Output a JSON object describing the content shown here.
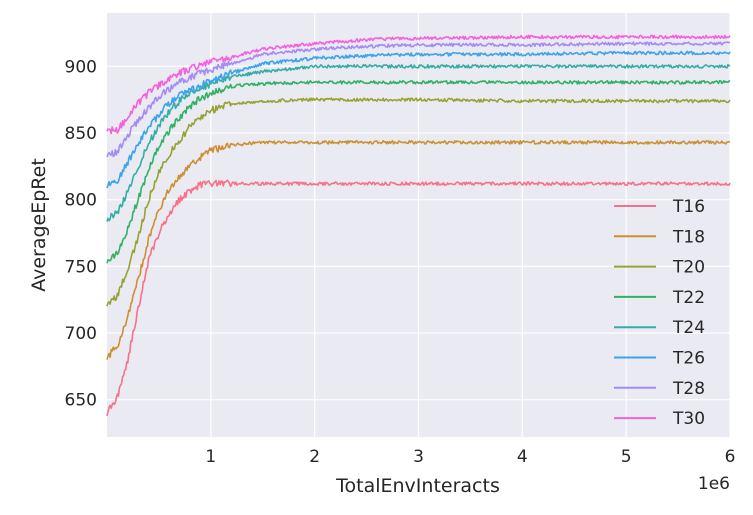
{
  "chart_data": {
    "type": "line",
    "xlabel": "TotalEnvInteracts",
    "ylabel": "AverageEpRet",
    "x_offset_label": "1e6",
    "xlim": [
      0,
      6000000
    ],
    "ylim": [
      622,
      940
    ],
    "x_ticks": [
      1000000,
      2000000,
      3000000,
      4000000,
      5000000,
      6000000
    ],
    "x_tick_labels": [
      "1",
      "2",
      "3",
      "4",
      "5",
      "6"
    ],
    "y_ticks": [
      650,
      700,
      750,
      800,
      850,
      900
    ],
    "y_tick_labels": [
      "650",
      "700",
      "750",
      "800",
      "850",
      "900"
    ],
    "grid": true,
    "background": "#EAEAF2",
    "legend_position": "lower-right",
    "series": [
      {
        "name": "T16",
        "color": "#F77189",
        "points": [
          [
            0,
            640
          ],
          [
            100000,
            652
          ],
          [
            200000,
            680
          ],
          [
            300000,
            718
          ],
          [
            400000,
            755
          ],
          [
            500000,
            775
          ],
          [
            600000,
            790
          ],
          [
            700000,
            800
          ],
          [
            800000,
            807
          ],
          [
            900000,
            811
          ],
          [
            1000000,
            812
          ],
          [
            2000000,
            812
          ],
          [
            3000000,
            812
          ],
          [
            4000000,
            812
          ],
          [
            5000000,
            812
          ],
          [
            6000000,
            812
          ]
        ]
      },
      {
        "name": "T18",
        "color": "#CE8F31",
        "points": [
          [
            0,
            682
          ],
          [
            100000,
            690
          ],
          [
            200000,
            712
          ],
          [
            300000,
            740
          ],
          [
            400000,
            770
          ],
          [
            500000,
            792
          ],
          [
            600000,
            808
          ],
          [
            700000,
            818
          ],
          [
            800000,
            826
          ],
          [
            900000,
            832
          ],
          [
            1000000,
            837
          ],
          [
            1200000,
            841
          ],
          [
            1500000,
            843
          ],
          [
            2000000,
            843
          ],
          [
            3000000,
            843
          ],
          [
            4000000,
            843
          ],
          [
            5000000,
            843
          ],
          [
            6000000,
            843
          ]
        ]
      },
      {
        "name": "T20",
        "color": "#96A331",
        "points": [
          [
            0,
            722
          ],
          [
            100000,
            728
          ],
          [
            200000,
            748
          ],
          [
            300000,
            772
          ],
          [
            400000,
            800
          ],
          [
            500000,
            820
          ],
          [
            600000,
            834
          ],
          [
            700000,
            845
          ],
          [
            800000,
            855
          ],
          [
            900000,
            862
          ],
          [
            1000000,
            867
          ],
          [
            1200000,
            872
          ],
          [
            1500000,
            874
          ],
          [
            2000000,
            875
          ],
          [
            3000000,
            875
          ],
          [
            4000000,
            874
          ],
          [
            5000000,
            874
          ],
          [
            6000000,
            874
          ]
        ]
      },
      {
        "name": "T22",
        "color": "#32B165",
        "points": [
          [
            0,
            754
          ],
          [
            100000,
            760
          ],
          [
            200000,
            778
          ],
          [
            300000,
            800
          ],
          [
            400000,
            823
          ],
          [
            500000,
            840
          ],
          [
            600000,
            852
          ],
          [
            700000,
            862
          ],
          [
            800000,
            870
          ],
          [
            900000,
            876
          ],
          [
            1000000,
            880
          ],
          [
            1200000,
            885
          ],
          [
            1500000,
            887
          ],
          [
            2000000,
            888
          ],
          [
            3000000,
            888
          ],
          [
            4000000,
            888
          ],
          [
            5000000,
            888
          ],
          [
            6000000,
            888
          ]
        ]
      },
      {
        "name": "T24",
        "color": "#36ADA4",
        "points": [
          [
            0,
            785
          ],
          [
            100000,
            790
          ],
          [
            200000,
            806
          ],
          [
            300000,
            824
          ],
          [
            400000,
            842
          ],
          [
            500000,
            855
          ],
          [
            600000,
            866
          ],
          [
            700000,
            874
          ],
          [
            800000,
            880
          ],
          [
            900000,
            884
          ],
          [
            1000000,
            887
          ],
          [
            1200000,
            892
          ],
          [
            1500000,
            896
          ],
          [
            2000000,
            900
          ],
          [
            2500000,
            900
          ],
          [
            3000000,
            900
          ],
          [
            4000000,
            900
          ],
          [
            5000000,
            900
          ],
          [
            6000000,
            900
          ]
        ]
      },
      {
        "name": "T26",
        "color": "#3BA3EC",
        "points": [
          [
            0,
            810
          ],
          [
            100000,
            814
          ],
          [
            200000,
            828
          ],
          [
            300000,
            842
          ],
          [
            400000,
            854
          ],
          [
            500000,
            864
          ],
          [
            600000,
            872
          ],
          [
            700000,
            878
          ],
          [
            800000,
            882
          ],
          [
            900000,
            886
          ],
          [
            1000000,
            889
          ],
          [
            1200000,
            895
          ],
          [
            1500000,
            902
          ],
          [
            2000000,
            906
          ],
          [
            2500000,
            908
          ],
          [
            3000000,
            909
          ],
          [
            4000000,
            909
          ],
          [
            5000000,
            910
          ],
          [
            6000000,
            910
          ]
        ]
      },
      {
        "name": "T28",
        "color": "#A48CF4",
        "points": [
          [
            0,
            833
          ],
          [
            100000,
            836
          ],
          [
            200000,
            848
          ],
          [
            300000,
            860
          ],
          [
            400000,
            869
          ],
          [
            500000,
            877
          ],
          [
            600000,
            883
          ],
          [
            700000,
            888
          ],
          [
            800000,
            892
          ],
          [
            900000,
            895
          ],
          [
            1000000,
            897
          ],
          [
            1200000,
            902
          ],
          [
            1500000,
            909
          ],
          [
            2000000,
            913
          ],
          [
            2500000,
            915
          ],
          [
            3000000,
            916
          ],
          [
            4000000,
            916
          ],
          [
            5000000,
            917
          ],
          [
            6000000,
            917
          ]
        ]
      },
      {
        "name": "T30",
        "color": "#F561DD",
        "points": [
          [
            0,
            852
          ],
          [
            100000,
            852
          ],
          [
            200000,
            862
          ],
          [
            300000,
            872
          ],
          [
            400000,
            880
          ],
          [
            500000,
            886
          ],
          [
            600000,
            891
          ],
          [
            700000,
            895
          ],
          [
            800000,
            898
          ],
          [
            900000,
            901
          ],
          [
            1000000,
            903
          ],
          [
            1200000,
            907
          ],
          [
            1500000,
            913
          ],
          [
            2000000,
            917
          ],
          [
            2500000,
            920
          ],
          [
            3000000,
            921
          ],
          [
            4000000,
            922
          ],
          [
            5000000,
            922
          ],
          [
            6000000,
            922
          ]
        ]
      }
    ]
  }
}
